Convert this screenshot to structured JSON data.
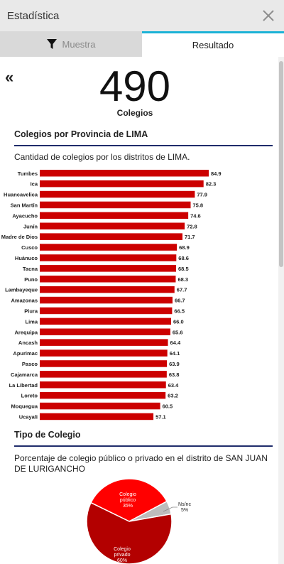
{
  "window": {
    "title": "Estadística"
  },
  "tabs": [
    {
      "label": "Muestra"
    },
    {
      "label": "Resultado"
    }
  ],
  "summary": {
    "count": "490",
    "label": "Colegios"
  },
  "section1": {
    "title": "Colegios por Provincia de LIMA",
    "description": "Cantidad de colegios por los distritos de LIMA."
  },
  "section2": {
    "title": "Tipo de Colegio",
    "description": "Porcentaje de colegio público o privado en el distrito de SAN JUAN DE LURIGANCHO"
  },
  "colors": {
    "bar": "#cc0000",
    "accent_tab": "#1ab2d6",
    "section_rule": "#1f2c6b",
    "pie_publico": "#ff0000",
    "pie_privado": "#b30000",
    "pie_nsnc": "#bdbdbd"
  },
  "chart_data": [
    {
      "type": "bar",
      "orientation": "horizontal",
      "categories": [
        "Tumbes",
        "Ica",
        "Huancavelica",
        "San Martín",
        "Ayacucho",
        "Junín",
        "Madre de Dios",
        "Cusco",
        "Huánuco",
        "Tacna",
        "Puno",
        "Lambayeque",
        "Amazonas",
        "Piura",
        "Lima",
        "Arequipa",
        "Ancash",
        "Apurimac",
        "Pasco",
        "Cajamarca",
        "La Libertad",
        "Loreto",
        "Moquegua",
        "Ucayali"
      ],
      "values": [
        84.9,
        82.3,
        77.9,
        75.8,
        74.6,
        72.8,
        71.7,
        68.9,
        68.6,
        68.5,
        68.3,
        67.7,
        66.7,
        66.5,
        66.0,
        65.6,
        64.4,
        64.1,
        63.9,
        63.8,
        63.4,
        63.2,
        60.5,
        57.1
      ],
      "value_labels": [
        "84.9",
        "82.3",
        "77.9",
        "75.8",
        "74.6",
        "72.8",
        "71.7",
        "68.9",
        "68.6",
        "68.5",
        "68.3",
        "67.7",
        "66.7",
        "66.5",
        "66.0",
        "65.6",
        "64.4",
        "64.1",
        "63.9",
        "63.8",
        "63.4",
        "63.2",
        "60.5",
        "57.1"
      ]
    },
    {
      "type": "pie",
      "slices": [
        {
          "lines": [
            "Colegio",
            "público",
            "35%"
          ],
          "value": 35,
          "color": "#ff0000"
        },
        {
          "lines": [
            "Colegio",
            "privado",
            "60%"
          ],
          "value": 60,
          "color": "#b30000"
        },
        {
          "lines": [
            "Ns/nc",
            "5%"
          ],
          "value": 5,
          "color": "#bdbdbd"
        }
      ]
    }
  ]
}
